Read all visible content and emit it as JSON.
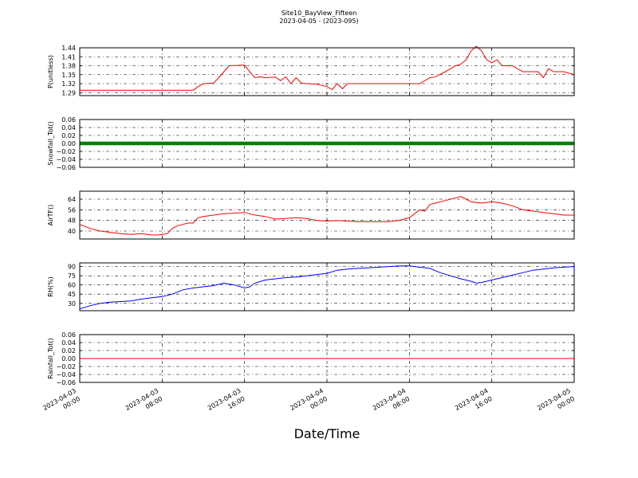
{
  "chart_data": {
    "title": "Site10_BayView_Fifteen",
    "subtitle": "2023-04-05 - (2023-095)",
    "xlabel": "Date/Time",
    "x_ticks": [
      {
        "line1": "2023-04-03",
        "line2": "00:00"
      },
      {
        "line1": "2023-04-03",
        "line2": "08:00"
      },
      {
        "line1": "2023-04-03",
        "line2": "16:00"
      },
      {
        "line1": "2023-04-04",
        "line2": "00:00"
      },
      {
        "line1": "2023-04-04",
        "line2": "08:00"
      },
      {
        "line1": "2023-04-04",
        "line2": "16:00"
      },
      {
        "line1": "2023-04-05",
        "line2": "00:00"
      }
    ],
    "xlim": [
      "2023-04-03 00:00",
      "2023-04-05 00:00"
    ],
    "grid": true,
    "panels": [
      {
        "type": "line",
        "ylabel": "P(unitless)",
        "ylim": [
          1.28,
          1.44
        ],
        "ticks": [
          1.29,
          1.32,
          1.35,
          1.38,
          1.41,
          1.44
        ],
        "tick_labels": [
          "1.29",
          "1.32",
          "1.35",
          "1.38",
          "1.41",
          "1.44"
        ],
        "color": "#ff0000",
        "x_hours": [
          0,
          2,
          4,
          6,
          8,
          10,
          11,
          11.5,
          12,
          13,
          13.5,
          14,
          14.5,
          16,
          16.5,
          17,
          17.5,
          18,
          19,
          19.5,
          20,
          20.5,
          21,
          21.5,
          22,
          23,
          24,
          24.5,
          25,
          25.5,
          26,
          27,
          28,
          29,
          30,
          31,
          32,
          33,
          34,
          34.5,
          35.5,
          36,
          36.5,
          37,
          37.5,
          38,
          38.5,
          39,
          39.5,
          40,
          40.5,
          41,
          41.5,
          42,
          43,
          44,
          44.5,
          45,
          45.5,
          46,
          47,
          48
        ],
        "values": [
          1.298,
          1.298,
          1.298,
          1.298,
          1.298,
          1.298,
          1.298,
          1.31,
          1.32,
          1.322,
          1.34,
          1.36,
          1.38,
          1.382,
          1.36,
          1.34,
          1.343,
          1.34,
          1.342,
          1.33,
          1.343,
          1.32,
          1.34,
          1.322,
          1.32,
          1.318,
          1.31,
          1.3,
          1.32,
          1.303,
          1.32,
          1.32,
          1.32,
          1.32,
          1.32,
          1.32,
          1.32,
          1.32,
          1.34,
          1.342,
          1.36,
          1.37,
          1.38,
          1.385,
          1.4,
          1.43,
          1.445,
          1.43,
          1.4,
          1.39,
          1.4,
          1.38,
          1.38,
          1.38,
          1.36,
          1.36,
          1.36,
          1.34,
          1.37,
          1.36,
          1.36,
          1.35
        ]
      },
      {
        "type": "scatter",
        "ylabel": "Snowfall_Tot()",
        "ylim": [
          -0.06,
          0.06
        ],
        "ticks": [
          -0.06,
          -0.04,
          -0.02,
          0.0,
          0.02,
          0.04,
          0.06
        ],
        "tick_labels": [
          "−0.06",
          "−0.04",
          "−0.02",
          "0.00",
          "0.02",
          "0.04",
          "0.06"
        ],
        "color": "#008000",
        "x_hours": [
          0,
          48
        ],
        "values": [
          0,
          0
        ],
        "note_markers_every_minutes": 15
      },
      {
        "type": "line",
        "ylabel": "AirTF()",
        "ylim": [
          34,
          70
        ],
        "ticks": [
          40,
          48,
          56,
          64
        ],
        "tick_labels": [
          "40",
          "48",
          "56",
          "64"
        ],
        "color": "#ff0000",
        "x_hours": [
          0,
          1,
          2,
          3,
          4,
          5,
          6,
          7,
          7.5,
          8,
          8.5,
          9,
          9.5,
          10,
          10.5,
          11,
          11.5,
          12,
          13,
          14,
          15,
          16,
          17,
          18,
          19,
          20,
          21,
          22,
          23,
          24,
          25,
          26,
          27,
          28,
          29,
          30,
          31,
          32,
          33,
          33.5,
          34,
          34.5,
          35,
          35.5,
          36,
          36.5,
          37,
          37.5,
          38,
          39,
          40,
          41,
          42,
          43,
          44,
          45,
          46,
          47,
          48
        ],
        "values": [
          45,
          42,
          40,
          39,
          38,
          37.5,
          38,
          37,
          37,
          37.5,
          38,
          42,
          44,
          45,
          46,
          46,
          50,
          51,
          52,
          53,
          53.5,
          54,
          52,
          51,
          49,
          49.5,
          50,
          49.5,
          48,
          47.5,
          48,
          47.5,
          47,
          47,
          47,
          47,
          48,
          50,
          56,
          55,
          60,
          61,
          62,
          63,
          64,
          65,
          66,
          64,
          62,
          61,
          62,
          61,
          59,
          56,
          55,
          54,
          53,
          52,
          52
        ]
      },
      {
        "type": "line",
        "ylabel": "RH(%)",
        "ylim": [
          18,
          96
        ],
        "ticks": [
          30,
          45,
          60,
          75,
          90
        ],
        "tick_labels": [
          "30",
          "45",
          "60",
          "75",
          "90"
        ],
        "color": "#0000ff",
        "x_hours": [
          0,
          1,
          2,
          3,
          4,
          5,
          6,
          7,
          8,
          9,
          10,
          11,
          12,
          13,
          14,
          15,
          16,
          16.5,
          17,
          18,
          19,
          20,
          21,
          22,
          23,
          24,
          25,
          26,
          27,
          28,
          29,
          30,
          31,
          32,
          33,
          34,
          35,
          36,
          37,
          38,
          38.5,
          39,
          40,
          41,
          42,
          43,
          44,
          45,
          46,
          47,
          48
        ],
        "values": [
          21,
          26,
          30,
          32,
          33,
          34,
          37,
          39,
          41,
          45,
          52,
          55,
          57,
          59,
          63,
          60,
          55,
          57,
          63,
          68,
          70,
          72,
          73,
          75,
          77,
          79,
          84,
          86,
          87,
          88,
          89,
          90,
          91,
          91,
          89,
          87,
          80,
          75,
          70,
          66,
          63,
          64,
          68,
          72,
          76,
          80,
          84,
          86,
          88,
          89,
          90
        ]
      },
      {
        "type": "line",
        "ylabel": "Rainfall_Tot()",
        "ylim": [
          -0.06,
          0.06
        ],
        "ticks": [
          -0.06,
          -0.04,
          -0.02,
          0.0,
          0.02,
          0.04,
          0.06
        ],
        "tick_labels": [
          "−0.06",
          "−0.04",
          "−0.02",
          "0.00",
          "0.02",
          "0.04",
          "0.06"
        ],
        "color": "#ff0000",
        "x_hours": [
          0,
          48
        ],
        "values": [
          0,
          0
        ]
      }
    ]
  }
}
